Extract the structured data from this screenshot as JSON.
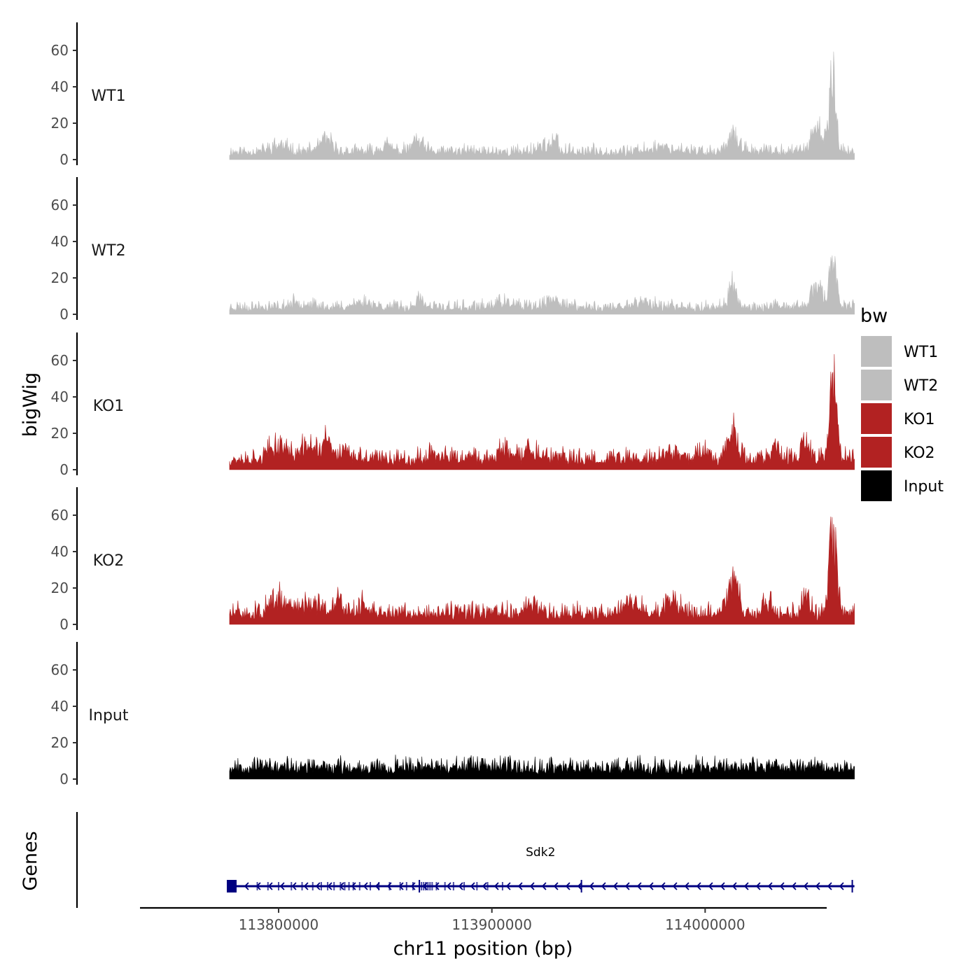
{
  "chart_data": {
    "type": "area",
    "title": "",
    "ylabel": "bigWig",
    "xlabel": "chr11 position (bp)",
    "xlim": [
      113735000,
      114057000
    ],
    "ylim": [
      0,
      75
    ],
    "signal_range": [
      113777000,
      114070000
    ],
    "yticks": [
      0,
      20,
      40,
      60
    ],
    "xticks": [
      113800000,
      113900000,
      114000000
    ],
    "xtick_labels": [
      "113800000",
      "113900000",
      "114000000"
    ],
    "tracks": [
      {
        "name": "WT1",
        "color": "#BEBEBE",
        "baseline": 3,
        "noise": 4,
        "seed": 11,
        "peaks": [
          {
            "pos": 113800000,
            "height": 4,
            "width": 4000
          },
          {
            "pos": 113822000,
            "height": 7,
            "width": 3000
          },
          {
            "pos": 113850000,
            "height": 4,
            "width": 3000
          },
          {
            "pos": 113865000,
            "height": 6,
            "width": 2500
          },
          {
            "pos": 113925000,
            "height": 4,
            "width": 4000
          },
          {
            "pos": 113930000,
            "height": 5,
            "width": 1000
          },
          {
            "pos": 113980000,
            "height": 3,
            "width": 5000
          },
          {
            "pos": 114013000,
            "height": 10,
            "width": 2500
          },
          {
            "pos": 114053000,
            "height": 12,
            "width": 3500
          },
          {
            "pos": 114060000,
            "height": 40,
            "width": 1600
          }
        ]
      },
      {
        "name": "WT2",
        "color": "#BEBEBE",
        "baseline": 2.5,
        "noise": 4,
        "seed": 23,
        "peaks": [
          {
            "pos": 113810000,
            "height": 3,
            "width": 4000
          },
          {
            "pos": 113840000,
            "height": 3,
            "width": 5000
          },
          {
            "pos": 113866000,
            "height": 5,
            "width": 1500
          },
          {
            "pos": 113905000,
            "height": 3,
            "width": 4000
          },
          {
            "pos": 113930000,
            "height": 4,
            "width": 4000
          },
          {
            "pos": 113970000,
            "height": 3,
            "width": 5000
          },
          {
            "pos": 114013000,
            "height": 12,
            "width": 2000
          },
          {
            "pos": 114053000,
            "height": 10,
            "width": 3500
          },
          {
            "pos": 114060000,
            "height": 30,
            "width": 1600
          }
        ]
      },
      {
        "name": "KO1",
        "color": "#B22222",
        "baseline": 4,
        "noise": 6,
        "seed": 37,
        "peaks": [
          {
            "pos": 113800000,
            "height": 8,
            "width": 4000
          },
          {
            "pos": 113815000,
            "height": 8,
            "width": 4000
          },
          {
            "pos": 113823000,
            "height": 10,
            "width": 2000
          },
          {
            "pos": 113831000,
            "height": 7,
            "width": 1500
          },
          {
            "pos": 113872000,
            "height": 5,
            "width": 1500
          },
          {
            "pos": 113905000,
            "height": 5,
            "width": 3000
          },
          {
            "pos": 113918000,
            "height": 6,
            "width": 3000
          },
          {
            "pos": 113985000,
            "height": 4,
            "width": 4000
          },
          {
            "pos": 114000000,
            "height": 5,
            "width": 3000
          },
          {
            "pos": 114013000,
            "height": 18,
            "width": 2500
          },
          {
            "pos": 114033000,
            "height": 12,
            "width": 1200
          },
          {
            "pos": 114047000,
            "height": 12,
            "width": 1500
          },
          {
            "pos": 114060000,
            "height": 52,
            "width": 1600
          }
        ]
      },
      {
        "name": "KO2",
        "color": "#B22222",
        "baseline": 4,
        "noise": 6,
        "seed": 51,
        "peaks": [
          {
            "pos": 113800000,
            "height": 8,
            "width": 4000
          },
          {
            "pos": 113815000,
            "height": 8,
            "width": 4000
          },
          {
            "pos": 113828000,
            "height": 9,
            "width": 2000
          },
          {
            "pos": 113840000,
            "height": 5,
            "width": 3000
          },
          {
            "pos": 113920000,
            "height": 5,
            "width": 3000
          },
          {
            "pos": 113965000,
            "height": 6,
            "width": 4000
          },
          {
            "pos": 113985000,
            "height": 8,
            "width": 3000
          },
          {
            "pos": 114013000,
            "height": 20,
            "width": 2500
          },
          {
            "pos": 114030000,
            "height": 8,
            "width": 2000
          },
          {
            "pos": 114047000,
            "height": 14,
            "width": 1500
          },
          {
            "pos": 114060000,
            "height": 50,
            "width": 1600
          }
        ]
      },
      {
        "name": "Input",
        "color": "#000000",
        "baseline": 5,
        "noise": 5,
        "seed": 67,
        "peaks": []
      }
    ],
    "legend": {
      "title": "bw",
      "position": "right",
      "entries": [
        {
          "label": "WT1",
          "color": "#BEBEBE"
        },
        {
          "label": "WT2",
          "color": "#BEBEBE"
        },
        {
          "label": "KO1",
          "color": "#B22222"
        },
        {
          "label": "KO2",
          "color": "#B22222"
        },
        {
          "label": "Input",
          "color": "#000000"
        }
      ]
    },
    "genes_panel": {
      "title": "Genes",
      "gene_color": "#000080",
      "genes": [
        {
          "name": "Sdk2",
          "start": 113777000,
          "end": 114070000,
          "strand": "-",
          "exons": [
            113778000,
            113790000,
            113795000,
            113800000,
            113806000,
            113811000,
            113816000,
            113820000,
            113823000,
            113826000,
            113829000,
            113831000,
            113833000,
            113835000,
            113838000,
            113843000,
            113847000,
            113852000,
            113857000,
            113860000,
            113863000,
            113866000,
            113867000,
            113868000,
            113869000,
            113870000,
            113871000,
            113872000,
            113874000,
            113878000,
            113882000,
            113887000,
            113893000,
            113898000,
            113905000,
            113942000,
            114069000
          ]
        }
      ]
    }
  }
}
